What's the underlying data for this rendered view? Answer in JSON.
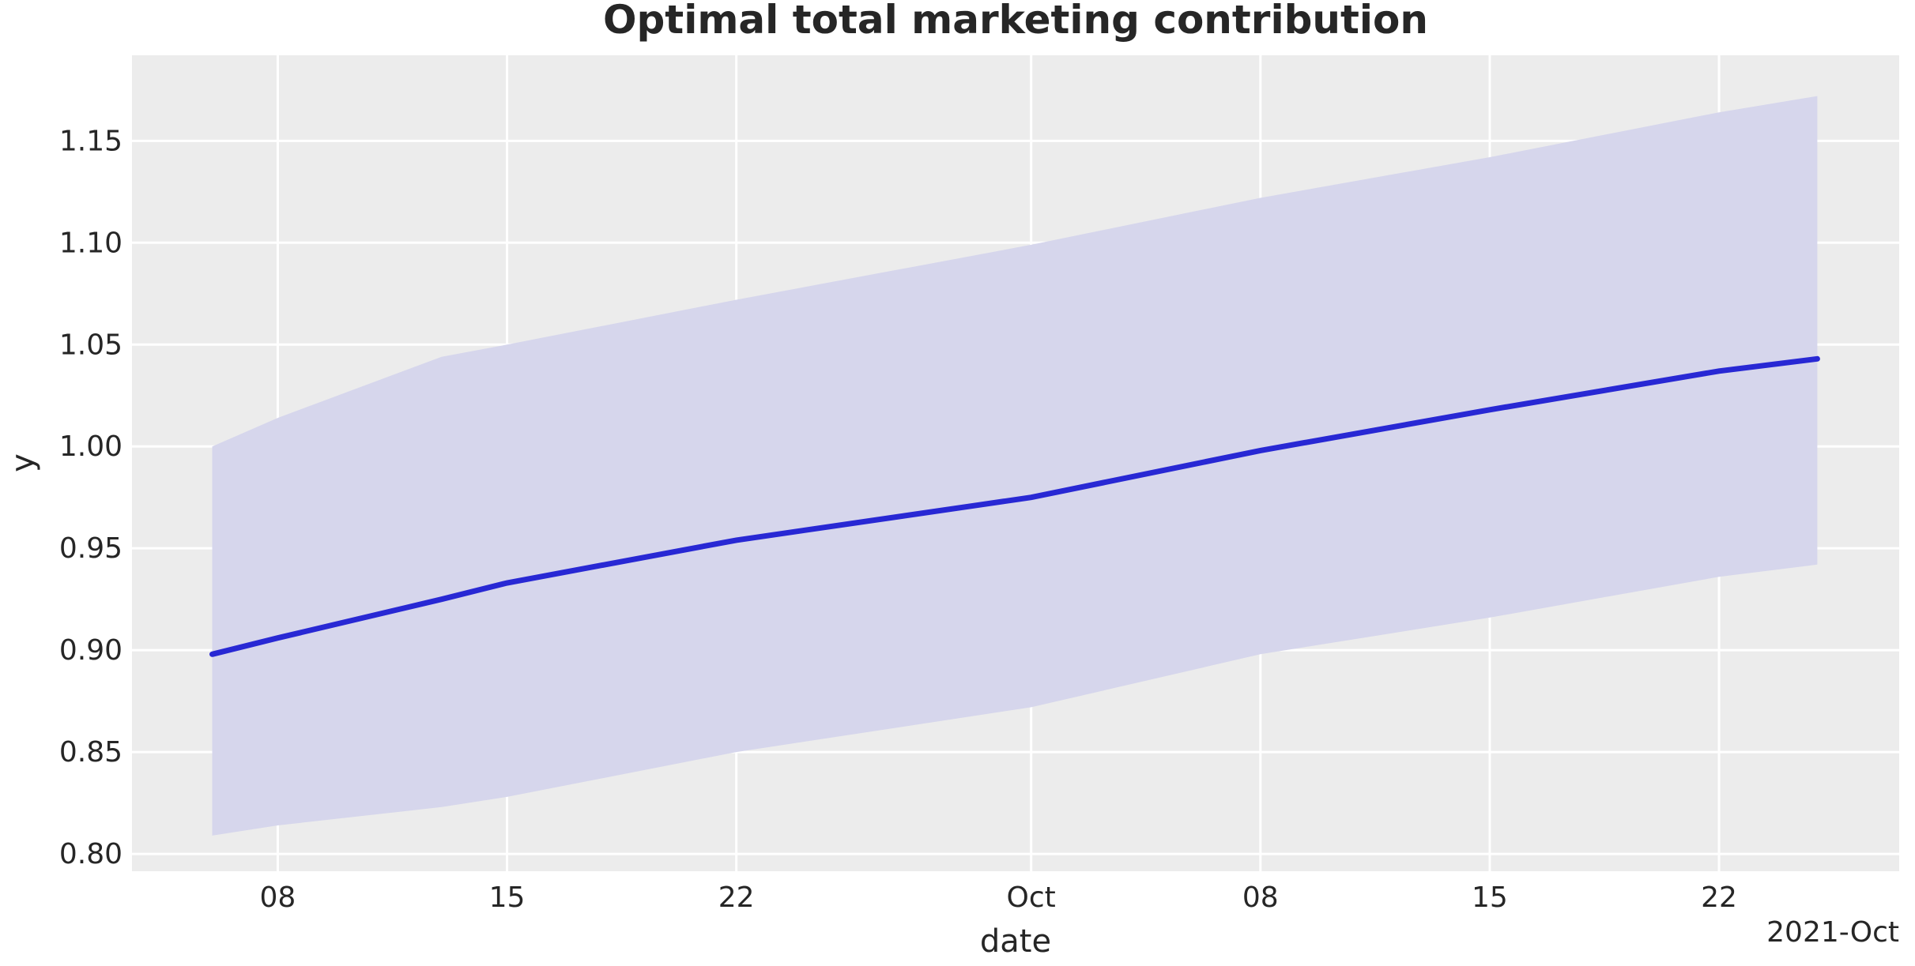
{
  "chart_data": {
    "type": "line",
    "title": "Optimal total marketing contribution",
    "xlabel": "date",
    "ylabel": "y",
    "offset_label": "2021-Oct",
    "x_unit": "days since 2021-09-06",
    "x": [
      0,
      2,
      7,
      9,
      16,
      25,
      32,
      39,
      46,
      49
    ],
    "x_dates": [
      "2021-09-06",
      "2021-09-08",
      "2021-09-13",
      "2021-09-15",
      "2021-09-22",
      "2021-10-01",
      "2021-10-08",
      "2021-10-15",
      "2021-10-22",
      "2021-10-25"
    ],
    "series": [
      {
        "name": "mean",
        "values": [
          0.898,
          0.906,
          0.925,
          0.933,
          0.954,
          0.975,
          0.998,
          1.018,
          1.037,
          1.043
        ]
      }
    ],
    "band": {
      "upper": [
        1.0,
        1.014,
        1.044,
        1.05,
        1.072,
        1.099,
        1.122,
        1.142,
        1.164,
        1.172
      ],
      "lower": [
        0.809,
        0.814,
        0.823,
        0.828,
        0.85,
        0.872,
        0.898,
        0.916,
        0.936,
        0.942
      ]
    },
    "x_ticks": {
      "days": [
        2,
        9,
        16,
        25,
        32,
        39,
        46
      ],
      "labels": [
        "08",
        "15",
        "22",
        "Oct",
        "08",
        "15",
        "22"
      ]
    },
    "y_ticks": [
      0.8,
      0.85,
      0.9,
      0.95,
      1.0,
      1.05,
      1.1,
      1.15
    ],
    "xlim_days": [
      -2.45,
      51.5
    ],
    "ylim": [
      0.7915,
      1.192
    ],
    "grid": true,
    "legend": "none",
    "colors": {
      "figure_bg": "#ffffff",
      "axes_bg": "#ececec",
      "grid": "#ffffff",
      "line": "#2828d4",
      "band_fill": "#d6d6ec",
      "text": "#262626"
    }
  }
}
